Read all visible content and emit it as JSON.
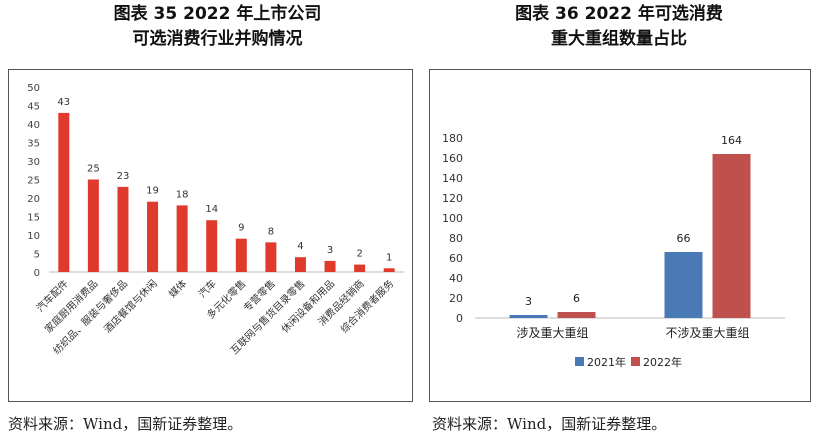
{
  "left": {
    "title_line1": "图表 35 2022 年上市公司",
    "title_line2": "可选消费行业并购情况",
    "source": "资料来源：Wind，国新证券整理。"
  },
  "right": {
    "title_line1": "图表 36 2022 年可选消费",
    "title_line2": "重大重组数量占比",
    "source": "资料来源：Wind，国新证券整理。"
  },
  "chart_data": [
    {
      "type": "bar",
      "title": "图表 35 2022 年上市公司可选消费行业并购情况",
      "categories": [
        "汽车配件",
        "家庭厨用消费品",
        "纺织品、服装与奢侈品",
        "酒店餐馆与休闲",
        "媒体",
        "汽车",
        "多元化零售",
        "专营零售",
        "互联网与售货目录零售",
        "休闲设备和用品",
        "消费品经销商",
        "综合消费者服务"
      ],
      "values": [
        43,
        25,
        23,
        19,
        18,
        14,
        9,
        8,
        4,
        3,
        2,
        1
      ],
      "ylim": [
        0,
        50
      ],
      "yticks": [
        0,
        5,
        10,
        15,
        20,
        25,
        30,
        35,
        40,
        45,
        50
      ],
      "color": "#e03a2c",
      "data_labels": true,
      "grid": false
    },
    {
      "type": "bar",
      "title": "图表 36 2022 年可选消费重大重组数量占比",
      "categories": [
        "涉及重大重组",
        "不涉及重大重组"
      ],
      "series": [
        {
          "name": "2021年",
          "values": [
            3,
            66
          ],
          "color": "#4a7ab5"
        },
        {
          "name": "2022年",
          "values": [
            6,
            164
          ],
          "color": "#c0504d"
        }
      ],
      "ylim": [
        0,
        180
      ],
      "yticks": [
        0,
        20,
        40,
        60,
        80,
        100,
        120,
        140,
        160,
        180
      ],
      "legend": "bottom",
      "data_labels": true,
      "grid": false
    }
  ]
}
